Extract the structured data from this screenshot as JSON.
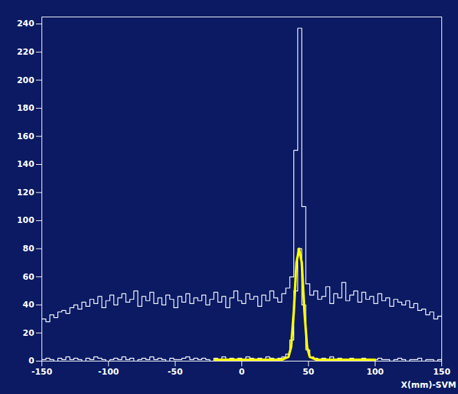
{
  "chart_data": {
    "type": "histogram",
    "x_label": "X(mm)-SVM",
    "bins": [
      -150,
      -147,
      -144,
      -141,
      -138,
      -135,
      -132,
      -129,
      -126,
      -123,
      -120,
      -117,
      -114,
      -111,
      -108,
      -105,
      -102,
      -99,
      -96,
      -93,
      -90,
      -87,
      -84,
      -81,
      -78,
      -75,
      -72,
      -69,
      -66,
      -63,
      -60,
      -57,
      -54,
      -51,
      -48,
      -45,
      -42,
      -39,
      -36,
      -33,
      -30,
      -27,
      -24,
      -21,
      -18,
      -15,
      -12,
      -9,
      -6,
      -3,
      0,
      3,
      6,
      9,
      12,
      15,
      18,
      21,
      24,
      27,
      30,
      33,
      36,
      39,
      42,
      45,
      48,
      51,
      54,
      57,
      60,
      63,
      66,
      69,
      72,
      75,
      78,
      81,
      84,
      87,
      90,
      93,
      96,
      99,
      102,
      105,
      108,
      111,
      114,
      117,
      120,
      123,
      126,
      129,
      132,
      135,
      138,
      141,
      144,
      147,
      150
    ],
    "series": [
      {
        "type": "histogram",
        "color": "#ffffff",
        "values": [
          30,
          28,
          33,
          31,
          35,
          36,
          34,
          38,
          40,
          37,
          42,
          39,
          44,
          41,
          46,
          38,
          43,
          47,
          40,
          45,
          48,
          42,
          44,
          50,
          39,
          46,
          43,
          49,
          41,
          45,
          40,
          47,
          44,
          38,
          46,
          42,
          48,
          41,
          45,
          43,
          47,
          40,
          44,
          49,
          42,
          46,
          38,
          45,
          50,
          43,
          41,
          48,
          44,
          46,
          39,
          47,
          43,
          50,
          45,
          42,
          48,
          52,
          60,
          150,
          237,
          110,
          55,
          47,
          50,
          44,
          46,
          53,
          41,
          48,
          45,
          56,
          43,
          47,
          50,
          42,
          49,
          44,
          46,
          41,
          48,
          43,
          45,
          39,
          44,
          42,
          40,
          43,
          38,
          41,
          36,
          37,
          33,
          35,
          30,
          32
        ]
      },
      {
        "type": "histogram",
        "color": "#ffffff",
        "values": [
          1,
          2,
          1,
          0,
          2,
          1,
          3,
          1,
          2,
          1,
          0,
          2,
          1,
          3,
          2,
          1,
          0,
          1,
          2,
          1,
          3,
          1,
          2,
          0,
          1,
          2,
          1,
          3,
          1,
          2,
          1,
          0,
          2,
          1,
          1,
          2,
          3,
          1,
          2,
          1,
          2,
          1,
          0,
          2,
          1,
          3,
          1,
          2,
          1,
          2,
          1,
          3,
          2,
          1,
          2,
          1,
          3,
          2,
          1,
          2,
          3,
          5,
          15,
          50,
          80,
          40,
          8,
          3,
          2,
          1,
          2,
          1,
          3,
          1,
          2,
          1,
          0,
          2,
          1,
          1,
          2,
          1,
          0,
          1,
          2,
          1,
          1,
          0,
          1,
          2,
          1,
          0,
          1,
          1,
          2,
          0,
          1,
          1,
          0,
          1
        ]
      },
      {
        "type": "line",
        "color": "#ffff00",
        "x": [
          -20,
          30,
          35,
          37,
          39,
          41,
          43,
          45,
          47,
          49,
          51,
          56,
          100
        ],
        "values": [
          1,
          1,
          3,
          10,
          35,
          70,
          80,
          70,
          35,
          10,
          3,
          1,
          1
        ]
      }
    ],
    "xlim": [
      -150,
      150
    ],
    "ylim": [
      0,
      245
    ],
    "xticks": [
      -150,
      -100,
      -50,
      0,
      50,
      100,
      150
    ],
    "yticks": [
      0,
      20,
      40,
      60,
      80,
      100,
      120,
      140,
      160,
      180,
      200,
      220,
      240
    ]
  }
}
